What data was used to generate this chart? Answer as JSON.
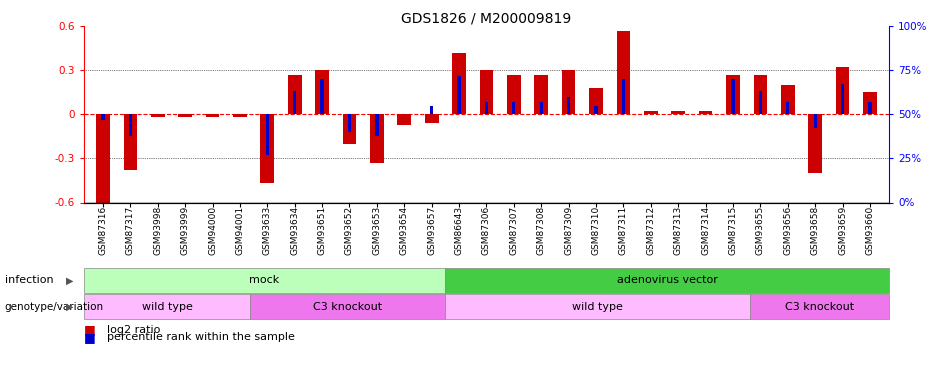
{
  "title": "GDS1826 / M200009819",
  "samples": [
    "GSM87316",
    "GSM87317",
    "GSM93998",
    "GSM93999",
    "GSM94000",
    "GSM94001",
    "GSM93633",
    "GSM93634",
    "GSM93651",
    "GSM93652",
    "GSM93653",
    "GSM93654",
    "GSM93657",
    "GSM86643",
    "GSM87306",
    "GSM87307",
    "GSM87308",
    "GSM87309",
    "GSM87310",
    "GSM87311",
    "GSM87312",
    "GSM87313",
    "GSM87314",
    "GSM87315",
    "GSM93655",
    "GSM93656",
    "GSM93658",
    "GSM93659",
    "GSM93660"
  ],
  "log2_ratio": [
    -0.6,
    -0.38,
    -0.02,
    -0.02,
    -0.02,
    -0.02,
    -0.47,
    0.27,
    0.3,
    -0.2,
    -0.33,
    -0.07,
    -0.06,
    0.42,
    0.3,
    0.27,
    0.27,
    0.3,
    0.18,
    0.57,
    0.02,
    0.02,
    0.02,
    0.27,
    0.27,
    0.2,
    -0.4,
    0.32,
    0.15
  ],
  "percentile_rank": [
    0.47,
    0.38,
    0.5,
    0.5,
    0.5,
    0.5,
    0.27,
    0.63,
    0.7,
    0.4,
    0.38,
    0.5,
    0.55,
    0.72,
    0.57,
    0.57,
    0.57,
    0.6,
    0.55,
    0.7,
    0.5,
    0.5,
    0.5,
    0.7,
    0.63,
    0.57,
    0.42,
    0.67,
    0.57
  ],
  "infection_groups": [
    {
      "label": "mock",
      "start": 0,
      "end": 12,
      "color": "#bbffbb"
    },
    {
      "label": "adenovirus vector",
      "start": 13,
      "end": 28,
      "color": "#44cc44"
    }
  ],
  "genotype_groups": [
    {
      "label": "wild type",
      "start": 0,
      "end": 5,
      "color": "#ffbbff"
    },
    {
      "label": "C3 knockout",
      "start": 6,
      "end": 12,
      "color": "#ee77ee"
    },
    {
      "label": "wild type",
      "start": 13,
      "end": 23,
      "color": "#ffbbff"
    },
    {
      "label": "C3 knockout",
      "start": 24,
      "end": 28,
      "color": "#ee77ee"
    }
  ],
  "ylim": [
    -0.6,
    0.6
  ],
  "yticks": [
    -0.6,
    -0.3,
    0.0,
    0.3,
    0.6
  ],
  "bar_color_red": "#cc0000",
  "bar_color_blue": "#0000cc",
  "legend_items": [
    "log2 ratio",
    "percentile rank within the sample"
  ]
}
